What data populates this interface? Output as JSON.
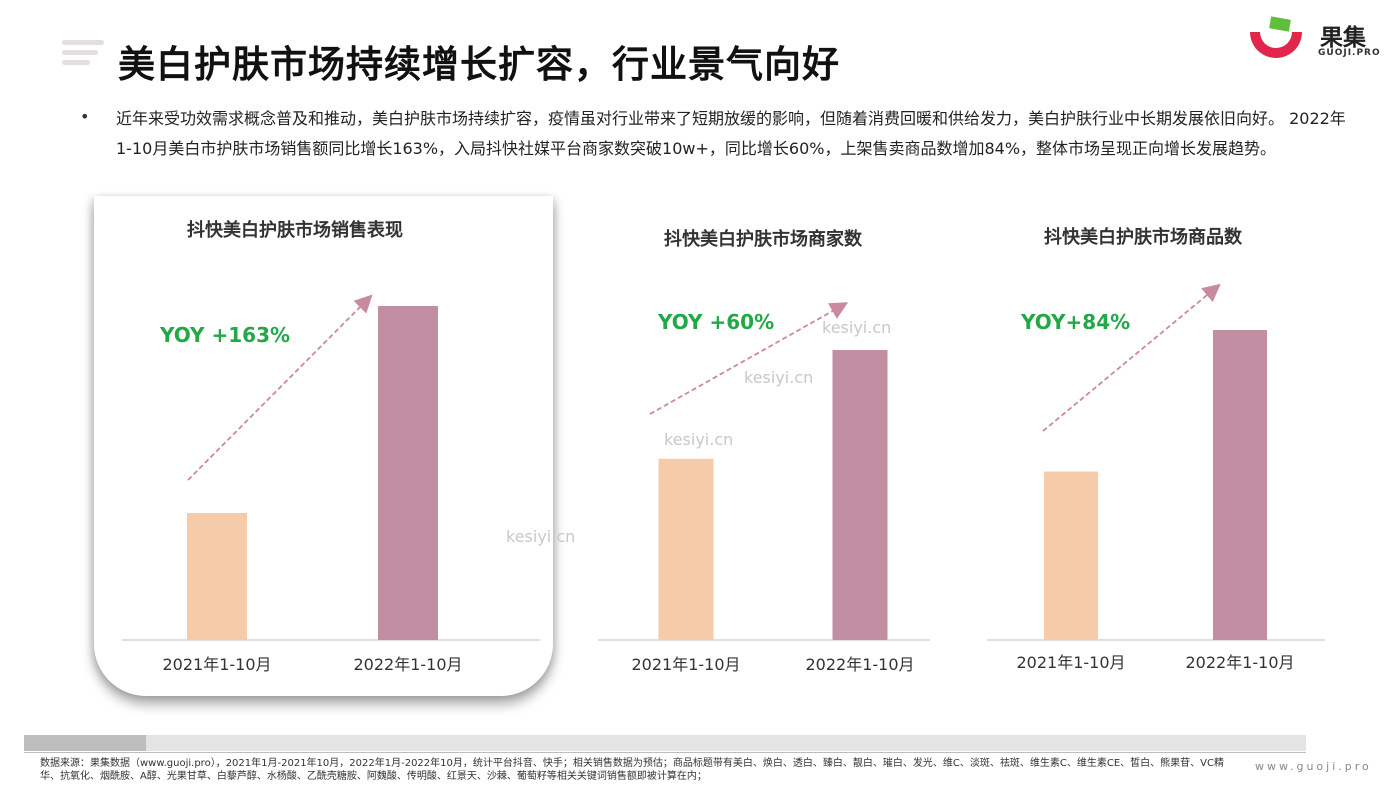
{
  "header": {
    "title": "美白护肤市场持续增长扩容，行业景气向好",
    "logo_text": "果集",
    "logo_sub": "GUOJI.PRO"
  },
  "intro": {
    "bullet": "•",
    "text": "近年来受功效需求概念普及和推动，美白护肤市场持续扩容，疫情虽对行业带来了短期放缓的影响，但随着消费回暖和供给发力，美白护肤行业中长期发展依旧向好。 2022年1-10月美白市护肤市场销售额同比增长163%，入局抖快社媒平台商家数突破10w+，同比增长60%，上架售卖商品数增加84%，整体市场呈现正向增长发展趋势。"
  },
  "colors": {
    "bar_2021": "#f5cbaa",
    "bar_2022": "#c28fa2",
    "yoy_green": "#22a846",
    "arrow": "#c9899f"
  },
  "chart_data": [
    {
      "type": "bar",
      "title": "抖快美白护肤市场销售表现",
      "categories": [
        "2021年1-10月",
        "2022年1-10月"
      ],
      "values": [
        1,
        2.63
      ],
      "annotation": "YOY +163%"
    },
    {
      "type": "bar",
      "title": "抖快美白护肤市场商家数",
      "categories": [
        "2021年1-10月",
        "2022年1-10月"
      ],
      "values": [
        1,
        1.6
      ],
      "annotation": "YOY +60%"
    },
    {
      "type": "bar",
      "title": "抖快美白护肤市场商品数",
      "categories": [
        "2021年1-10月",
        "2022年1-10月"
      ],
      "values": [
        1,
        1.84
      ],
      "annotation": "YOY+84%"
    }
  ],
  "watermark": [
    "kesiyi.cn",
    "kesiyi.cn",
    "kesiyi.cn",
    "kesiyi.cn"
  ],
  "footer": {
    "source": "数据来源：果集数据（www.guoji.pro），2021年1月-2021年10月，2022年1月-2022年10月，统计平台抖音、快手；相关销售数据为预估；商品标题带有美白、焕白、透白、臻白、靓白、璀白、发光、维C、淡斑、祛斑、维生素C、维生素CE、皙白、熊果苷、VC精华、抗氧化、烟酰胺、A醇、光果甘草、白藜芦醇、水杨酸、乙酰壳糖胺、阿魏酸、传明酸、红景天、沙棘、葡萄籽等相关关键词销售额即被计算在内；",
    "site": "www.guoji.pro"
  }
}
